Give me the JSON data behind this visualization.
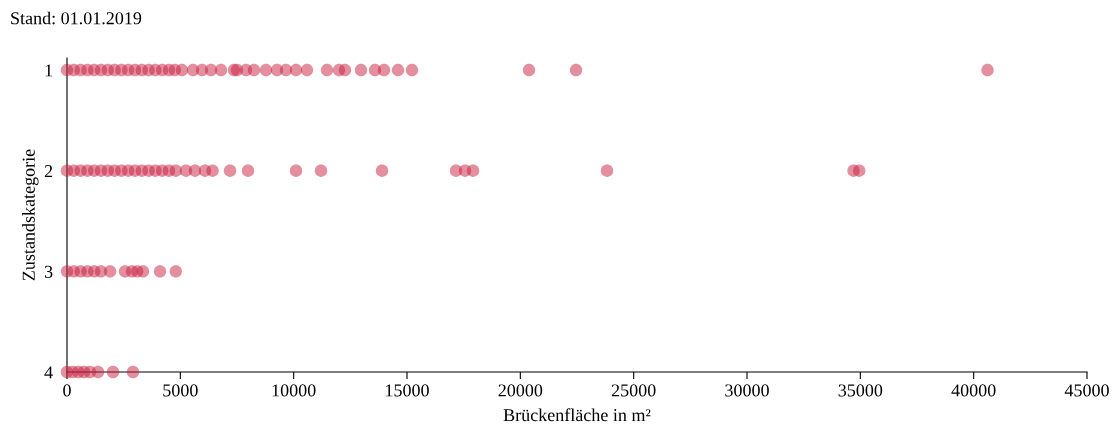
{
  "chart_data": {
    "type": "scatter",
    "annotations": [
      "Stand: 01.01.2019"
    ],
    "xlabel": "Brückenfläche in m²",
    "ylabel": "Zustandskategorie",
    "xlim": [
      0,
      45000
    ],
    "xticks": [
      0,
      5000,
      10000,
      15000,
      20000,
      25000,
      30000,
      35000,
      40000,
      45000
    ],
    "ylim": [
      4,
      0.88
    ],
    "yticks": [
      1,
      2,
      3,
      4
    ],
    "grid": false,
    "legend": false,
    "marker": "circle",
    "series": [
      {
        "color": "#c8203f",
        "x": [
          0,
          300,
          600,
          900,
          1200,
          1500,
          1800,
          2100,
          2400,
          2700,
          3000,
          3300,
          3600,
          3900,
          4200,
          4500,
          4760,
          5074,
          5559,
          5956,
          6353,
          6794,
          7368,
          7500,
          7897,
          8250,
          8780,
          9265,
          9662,
          10103,
          10588,
          11471,
          12000,
          12265,
          12971,
          13589,
          13986,
          14604,
          15221,
          20383,
          22457,
          40612,
          0,
          300,
          600,
          900,
          1200,
          1500,
          1800,
          2100,
          2400,
          2700,
          3000,
          3300,
          3600,
          3900,
          4200,
          4500,
          4800,
          5250,
          5647,
          6089,
          6420,
          7192,
          7986,
          10103,
          11206,
          13898,
          17163,
          17560,
          17913,
          23825,
          34700,
          34950,
          0,
          300,
          600,
          900,
          1200,
          1500,
          1900,
          2559,
          2868,
          3100,
          3353,
          4103,
          4800,
          0,
          250,
          500,
          750,
          1015,
          1368,
          2030,
          2912
        ],
        "values": [
          1,
          1,
          1,
          1,
          1,
          1,
          1,
          1,
          1,
          1,
          1,
          1,
          1,
          1,
          1,
          1,
          1,
          1,
          1,
          1,
          1,
          1,
          1,
          1,
          1,
          1,
          1,
          1,
          1,
          1,
          1,
          1,
          1,
          1,
          1,
          1,
          1,
          1,
          1,
          1,
          1,
          1,
          2,
          2,
          2,
          2,
          2,
          2,
          2,
          2,
          2,
          2,
          2,
          2,
          2,
          2,
          2,
          2,
          2,
          2,
          2,
          2,
          2,
          2,
          2,
          2,
          2,
          2,
          2,
          2,
          2,
          2,
          2,
          2,
          3,
          3,
          3,
          3,
          3,
          3,
          3,
          3,
          3,
          3,
          3,
          3,
          3,
          4,
          4,
          4,
          4,
          4,
          4,
          4,
          4
        ]
      }
    ]
  }
}
